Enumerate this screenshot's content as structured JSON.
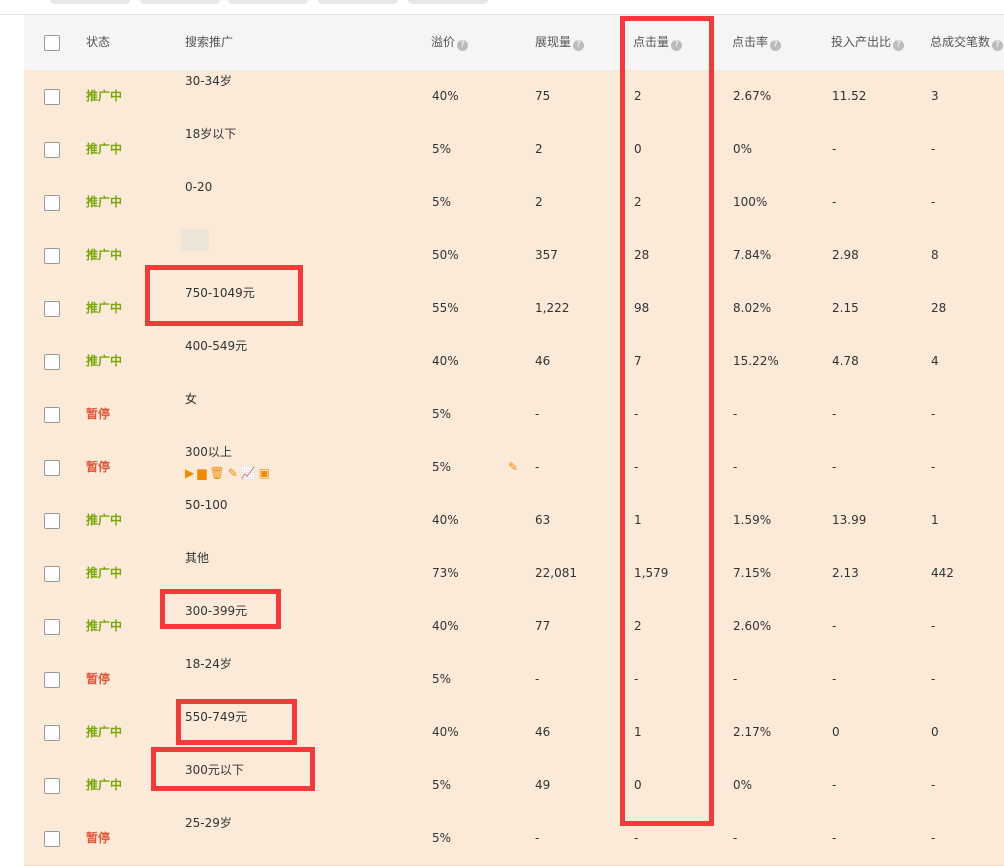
{
  "headers": {
    "status": "状态",
    "name": "搜索推广",
    "premium": "溢价",
    "impressions": "展现量",
    "clicks": "点击量",
    "ctr": "点击率",
    "roi": "投入产出比",
    "orders": "总成交笔数"
  },
  "rows": [
    {
      "status": "推广中",
      "state": "on",
      "name": "30-34岁",
      "premium": "40%",
      "impressions": "75",
      "clicks": "2",
      "ctr": "2.67%",
      "roi": "11.52",
      "orders": "3"
    },
    {
      "status": "推广中",
      "state": "on",
      "name": "18岁以下",
      "premium": "5%",
      "impressions": "2",
      "clicks": "0",
      "ctr": "0%",
      "roi": "-",
      "orders": "-"
    },
    {
      "status": "推广中",
      "state": "on",
      "name": "0-20",
      "premium": "5%",
      "impressions": "2",
      "clicks": "2",
      "ctr": "100%",
      "roi": "-",
      "orders": "-"
    },
    {
      "status": "推广中",
      "state": "on",
      "name": "",
      "premium": "50%",
      "impressions": "357",
      "clicks": "28",
      "ctr": "7.84%",
      "roi": "2.98",
      "orders": "8"
    },
    {
      "status": "推广中",
      "state": "on",
      "name": "750-1049元",
      "premium": "55%",
      "impressions": "1,222",
      "clicks": "98",
      "ctr": "8.02%",
      "roi": "2.15",
      "orders": "28"
    },
    {
      "status": "推广中",
      "state": "on",
      "name": "400-549元",
      "premium": "40%",
      "impressions": "46",
      "clicks": "7",
      "ctr": "15.22%",
      "roi": "4.78",
      "orders": "4"
    },
    {
      "status": "暂停",
      "state": "off",
      "name": "女",
      "premium": "5%",
      "impressions": "-",
      "clicks": "-",
      "ctr": "-",
      "roi": "-",
      "orders": "-"
    },
    {
      "status": "暂停",
      "state": "off",
      "name": "300以上",
      "premium": "5%",
      "impressions": "-",
      "clicks": "-",
      "ctr": "-",
      "roi": "-",
      "orders": "-"
    },
    {
      "status": "推广中",
      "state": "on",
      "name": "50-100",
      "premium": "40%",
      "impressions": "63",
      "clicks": "1",
      "ctr": "1.59%",
      "roi": "13.99",
      "orders": "1"
    },
    {
      "status": "推广中",
      "state": "on",
      "name": "其他",
      "premium": "73%",
      "impressions": "22,081",
      "clicks": "1,579",
      "ctr": "7.15%",
      "roi": "2.13",
      "orders": "442"
    },
    {
      "status": "推广中",
      "state": "on",
      "name": "300-399元",
      "premium": "40%",
      "impressions": "77",
      "clicks": "2",
      "ctr": "2.60%",
      "roi": "-",
      "orders": "-"
    },
    {
      "status": "暂停",
      "state": "off",
      "name": "18-24岁",
      "premium": "5%",
      "impressions": "-",
      "clicks": "-",
      "ctr": "-",
      "roi": "-",
      "orders": "-"
    },
    {
      "status": "推广中",
      "state": "on",
      "name": "550-749元",
      "premium": "40%",
      "impressions": "46",
      "clicks": "1",
      "ctr": "2.17%",
      "roi": "0",
      "orders": "0"
    },
    {
      "status": "推广中",
      "state": "on",
      "name": "300元以下",
      "premium": "5%",
      "impressions": "49",
      "clicks": "0",
      "ctr": "0%",
      "roi": "-",
      "orders": "-"
    },
    {
      "status": "暂停",
      "state": "off",
      "name": "25-29岁",
      "premium": "5%",
      "impressions": "-",
      "clicks": "-",
      "ctr": "-",
      "roi": "-",
      "orders": "-"
    }
  ],
  "hover_row_actions": [
    "play-icon",
    "calendar-icon",
    "trash-icon",
    "pencil-icon",
    "chart-icon",
    "report-icon"
  ],
  "colors": {
    "active": "#7aa70c",
    "paused": "#e0573c",
    "row_bg": "#fbead8",
    "annotation": "#f23a3a",
    "action": "#f08a00"
  }
}
